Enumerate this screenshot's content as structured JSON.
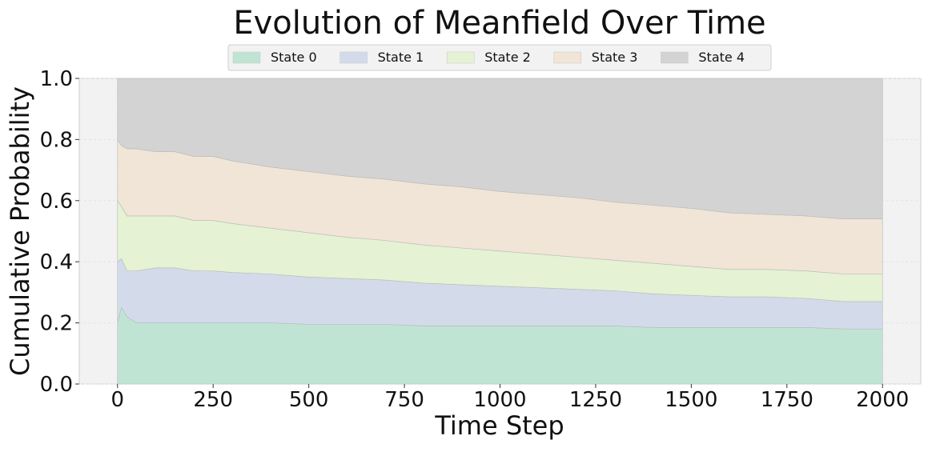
{
  "chart_data": {
    "type": "area",
    "stacked": true,
    "title": "Evolution of Meanfield Over Time",
    "xlabel": "Time Step",
    "ylabel": "Cumulative Probability",
    "xlim": [
      -100,
      2100
    ],
    "ylim": [
      0,
      1
    ],
    "xticks": [
      0,
      250,
      500,
      750,
      1000,
      1250,
      1500,
      1750,
      2000
    ],
    "yticks": [
      0.0,
      0.2,
      0.4,
      0.6,
      0.8,
      1.0
    ],
    "xtick_labels": [
      "0",
      "250",
      "500",
      "750",
      "1000",
      "1250",
      "1500",
      "1750",
      "2000"
    ],
    "ytick_labels": [
      "0.0",
      "0.2",
      "0.4",
      "0.6",
      "0.8",
      "1.0"
    ],
    "grid": true,
    "legend_position": "top-center",
    "background": "#f2f2f2",
    "x": [
      0,
      10,
      25,
      50,
      100,
      150,
      200,
      250,
      300,
      400,
      500,
      600,
      700,
      800,
      900,
      1000,
      1100,
      1200,
      1300,
      1400,
      1500,
      1600,
      1700,
      1800,
      1900,
      2000
    ],
    "series": [
      {
        "name": "State 0",
        "color": "#c0e4d4",
        "values": [
          0.2,
          0.25,
          0.22,
          0.2,
          0.2,
          0.2,
          0.2,
          0.2,
          0.2,
          0.2,
          0.195,
          0.195,
          0.195,
          0.19,
          0.19,
          0.19,
          0.19,
          0.19,
          0.19,
          0.185,
          0.185,
          0.185,
          0.185,
          0.185,
          0.18,
          0.18
        ]
      },
      {
        "name": "State 1",
        "color": "#d3dbea",
        "values": [
          0.2,
          0.16,
          0.15,
          0.17,
          0.18,
          0.18,
          0.17,
          0.17,
          0.165,
          0.16,
          0.155,
          0.15,
          0.145,
          0.14,
          0.135,
          0.13,
          0.125,
          0.12,
          0.115,
          0.11,
          0.105,
          0.1,
          0.1,
          0.095,
          0.09,
          0.09
        ]
      },
      {
        "name": "State 2",
        "color": "#e5f2d3",
        "values": [
          0.2,
          0.17,
          0.18,
          0.18,
          0.17,
          0.17,
          0.165,
          0.165,
          0.16,
          0.15,
          0.145,
          0.135,
          0.13,
          0.125,
          0.12,
          0.115,
          0.11,
          0.105,
          0.1,
          0.1,
          0.095,
          0.09,
          0.09,
          0.09,
          0.09,
          0.09
        ]
      },
      {
        "name": "State 3",
        "color": "#f0e5d6",
        "values": [
          0.2,
          0.2,
          0.22,
          0.22,
          0.21,
          0.21,
          0.21,
          0.21,
          0.205,
          0.2,
          0.2,
          0.2,
          0.2,
          0.2,
          0.2,
          0.195,
          0.195,
          0.195,
          0.19,
          0.19,
          0.19,
          0.185,
          0.18,
          0.18,
          0.18,
          0.18
        ]
      },
      {
        "name": "State 4",
        "color": "#d3d3d3",
        "values": [
          0.2,
          0.22,
          0.23,
          0.23,
          0.24,
          0.24,
          0.255,
          0.255,
          0.27,
          0.29,
          0.305,
          0.32,
          0.33,
          0.345,
          0.355,
          0.37,
          0.38,
          0.39,
          0.405,
          0.415,
          0.425,
          0.44,
          0.445,
          0.45,
          0.46,
          0.46
        ]
      }
    ]
  }
}
